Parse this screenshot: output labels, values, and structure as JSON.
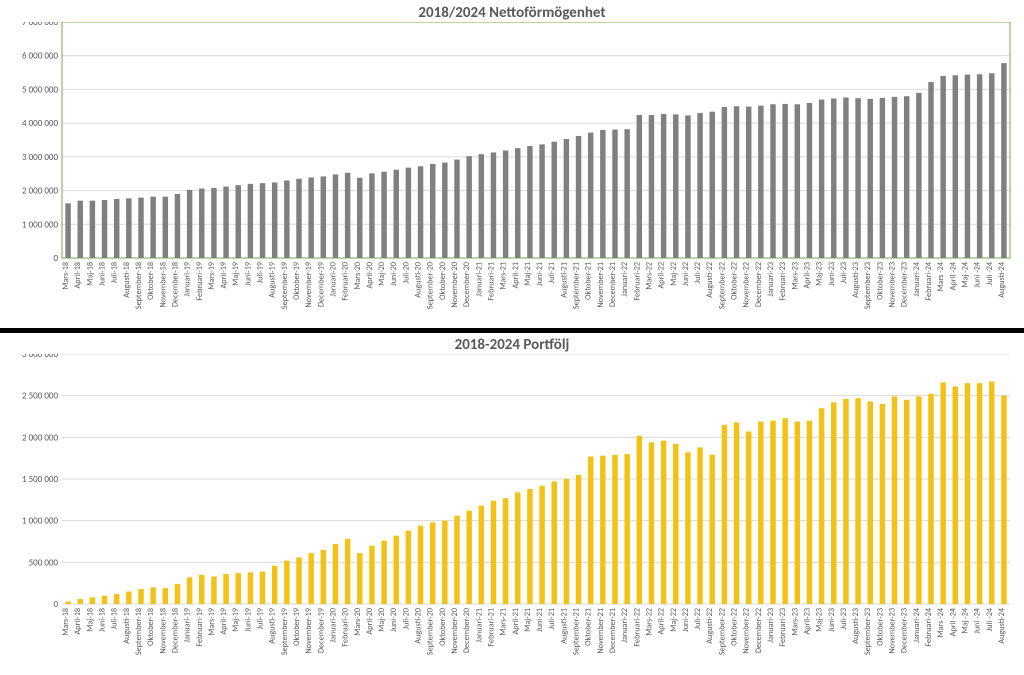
{
  "top_chart": {
    "title": "2018/2024 Nettoförmögenhet",
    "title_fontsize": 15,
    "title_color": "#595959",
    "bar_color": "#808080",
    "grid_color": "#d9d9d9",
    "border_color": "#70ad47",
    "background": "#ffffff",
    "ylim": [
      0,
      7000000
    ],
    "ytick_step": 1000000,
    "ylabels": [
      "0",
      "1 000 000",
      "2 000 000",
      "3 000 000",
      "4 000 000",
      "5 000 000",
      "6 000 000",
      "7 000 000"
    ],
    "labels": [
      "Mars-18",
      "April-18",
      "Maj-18",
      "Juni-18",
      "Juli-18",
      "Augusti-18",
      "September-18",
      "Oktober-18",
      "November-18",
      "December-18",
      "Januari-19",
      "Februari-19",
      "Mars-19",
      "April-19",
      "Maj-19",
      "Juni-19",
      "Juli-19",
      "Augusti-19",
      "September-19",
      "Oktober-19",
      "November-19",
      "December-19",
      "Januari-20",
      "Februari-20",
      "Mars-20",
      "April-20",
      "Maj-20",
      "Juni-20",
      "Juli-20",
      "Augusti-20",
      "September-20",
      "Oktober-20",
      "November-20",
      "December-20",
      "Januari-21",
      "Februari-21",
      "Mars-21",
      "April-21",
      "Maj-21",
      "Juni-21",
      "Juli-21",
      "Augusti-21",
      "September-21",
      "Oktober-21",
      "November-21",
      "December-21",
      "Januari-22",
      "Februari-22",
      "Mars-22",
      "April-22",
      "Maj-22",
      "Juni-22",
      "Juli-22",
      "Augusti-22",
      "September-22",
      "Oktober-22",
      "November-22",
      "December-22",
      "Januari-23",
      "Februari-23",
      "Mars-23",
      "April-23",
      "Maj-23",
      "Juni-23",
      "Juli-23",
      "Augusti-23",
      "September-23",
      "Oktober-23",
      "November-23",
      "December-23",
      "Januari-24",
      "Februari-24",
      "Mars -24",
      "April -24",
      "Maj -24",
      "Juni -24",
      "Juli -24",
      "Augusti-24"
    ],
    "values": [
      1620000,
      1700000,
      1700000,
      1720000,
      1750000,
      1770000,
      1790000,
      1820000,
      1820000,
      1900000,
      2020000,
      2060000,
      2080000,
      2120000,
      2160000,
      2200000,
      2220000,
      2240000,
      2300000,
      2350000,
      2390000,
      2420000,
      2480000,
      2530000,
      2380000,
      2510000,
      2560000,
      2620000,
      2680000,
      2720000,
      2790000,
      2830000,
      2920000,
      3020000,
      3080000,
      3130000,
      3190000,
      3260000,
      3320000,
      3370000,
      3450000,
      3530000,
      3620000,
      3720000,
      3800000,
      3810000,
      3820000,
      4240000,
      4240000,
      4270000,
      4260000,
      4230000,
      4300000,
      4340000,
      4480000,
      4500000,
      4490000,
      4520000,
      4560000,
      4570000,
      4560000,
      4600000,
      4700000,
      4730000,
      4760000,
      4740000,
      4720000,
      4750000,
      4780000,
      4800000,
      4900000,
      5220000,
      5400000,
      5420000,
      5440000,
      5450000,
      5480000,
      5780000
    ]
  },
  "bottom_chart": {
    "title": "2018-2024 Portfölj",
    "title_fontsize": 15,
    "title_color": "#595959",
    "bar_color": "#f2c216",
    "grid_color": "#d9d9d9",
    "background": "#ffffff",
    "ylim": [
      0,
      3000000
    ],
    "ytick_step": 500000,
    "ylabels": [
      "0",
      "500 000",
      "1 000 000",
      "1 500 000",
      "2 000 000",
      "2 500 000",
      "3 000 000"
    ],
    "labels": [
      "Mars-18",
      "April-18",
      "Maj-18",
      "Juni-18",
      "Juli-18",
      "Augusti-18",
      "September-18",
      "Oktober-18",
      "November-18",
      "December-18",
      "Januari-19",
      "Februari-19",
      "Mars-19",
      "April-19",
      "Maj-19",
      "Juni-19",
      "Juli-19",
      "Augusti-19",
      "September-19",
      "Oktober-19",
      "November-19",
      "December-19",
      "Januari-20",
      "Februari-20",
      "Mars-20",
      "April-20",
      "Maj-20",
      "Juni-20",
      "Juli-20",
      "Augusti-20",
      "September-20",
      "Oktober-20",
      "November-20",
      "December-20",
      "Januari-21",
      "Februari-21",
      "Mars-21",
      "April-21",
      "Maj-21",
      "Juni-21",
      "Juli-21",
      "Augusti-21",
      "September-21",
      "Oktober-21",
      "November-21",
      "December-21",
      "Januari-22",
      "Februari-22",
      "Mars-22",
      "April-22",
      "Maj-22",
      "Juni-22",
      "Juli-22",
      "Augusti-22",
      "September-22",
      "Oktober-22",
      "November-22",
      "December-22",
      "Januari-23",
      "Februari-23",
      "Mars-23",
      "April-23",
      "Maj-23",
      "Juni-23",
      "Juli-23",
      "Augusti-23",
      "September-23",
      "Oktober-23",
      "November-23",
      "December-23",
      "Januari-24",
      "Februari-24",
      "Mars -24",
      "April -24",
      "Maj -24",
      "Juni -24",
      "Juli -24",
      "Augusti-24"
    ],
    "values": [
      30000,
      60000,
      80000,
      100000,
      120000,
      150000,
      180000,
      200000,
      190000,
      240000,
      320000,
      350000,
      330000,
      360000,
      370000,
      380000,
      390000,
      460000,
      520000,
      560000,
      610000,
      650000,
      720000,
      780000,
      610000,
      700000,
      760000,
      820000,
      880000,
      940000,
      980000,
      1000000,
      1060000,
      1120000,
      1180000,
      1240000,
      1270000,
      1340000,
      1380000,
      1420000,
      1470000,
      1500000,
      1550000,
      1770000,
      1780000,
      1790000,
      1800000,
      2020000,
      1940000,
      1960000,
      1920000,
      1820000,
      1880000,
      1790000,
      2150000,
      2180000,
      2070000,
      2190000,
      2200000,
      2230000,
      2190000,
      2200000,
      2350000,
      2420000,
      2460000,
      2470000,
      2430000,
      2400000,
      2490000,
      2450000,
      2490000,
      2520000,
      2660000,
      2610000,
      2650000,
      2650000,
      2670000,
      2500000
    ]
  }
}
